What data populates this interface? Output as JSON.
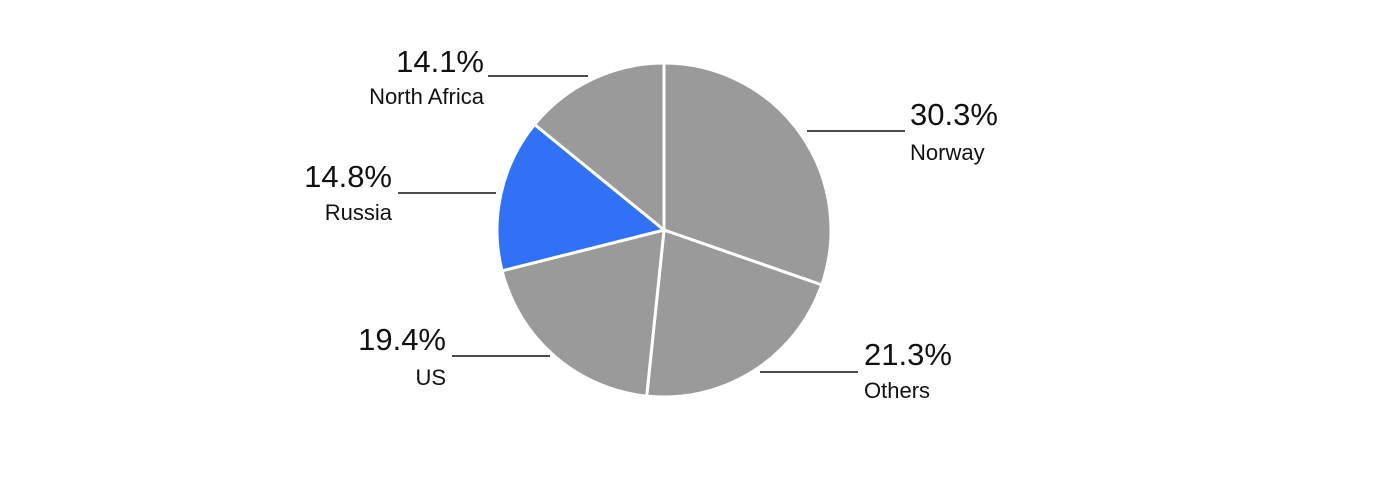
{
  "chart_data": {
    "type": "pie",
    "start_angle": "12 o'clock",
    "direction": "clockwise",
    "slices": [
      {
        "label": "Norway",
        "value": 30.3,
        "display": "30.3%",
        "color": "#9a9a9a"
      },
      {
        "label": "Others",
        "value": 21.3,
        "display": "21.3%",
        "color": "#9a9a9a"
      },
      {
        "label": "US",
        "value": 19.4,
        "display": "19.4%",
        "color": "#9a9a9a"
      },
      {
        "label": "Russia",
        "value": 14.8,
        "display": "14.8%",
        "color": "#3171f5"
      },
      {
        "label": "North Africa",
        "value": 14.1,
        "display": "14.1%",
        "color": "#9a9a9a"
      }
    ],
    "slice_border_color": "#ffffff",
    "legend": "none"
  }
}
